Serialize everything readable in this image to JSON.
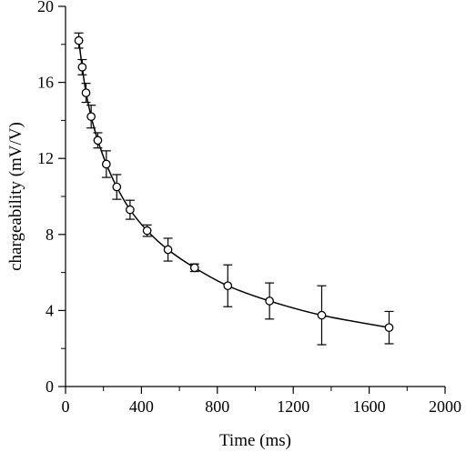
{
  "chart_data": {
    "type": "scatter",
    "title": "",
    "xlabel": "Time (ms)",
    "ylabel": "chargeability (mV/V)",
    "xlim": [
      0,
      2000
    ],
    "ylim": [
      0,
      20
    ],
    "x_ticks": [
      0,
      400,
      800,
      1200,
      1600,
      2000
    ],
    "y_ticks": [
      0,
      4,
      8,
      12,
      16,
      20
    ],
    "grid": false,
    "legend": "none",
    "marker": "open circle",
    "fit_line": "smooth curve through points",
    "color": "#000000",
    "series": [
      {
        "points": [
          {
            "x": 70,
            "y": 18.2,
            "err": 0.4
          },
          {
            "x": 88,
            "y": 16.8,
            "err": 0.4
          },
          {
            "x": 108,
            "y": 15.45,
            "err": 0.5
          },
          {
            "x": 135,
            "y": 14.2,
            "err": 0.6
          },
          {
            "x": 170,
            "y": 12.95,
            "err": 0.4
          },
          {
            "x": 215,
            "y": 11.7,
            "err": 0.7
          },
          {
            "x": 270,
            "y": 10.5,
            "err": 0.65
          },
          {
            "x": 340,
            "y": 9.3,
            "err": 0.5
          },
          {
            "x": 430,
            "y": 8.2,
            "err": 0.3
          },
          {
            "x": 540,
            "y": 7.2,
            "err": 0.6
          },
          {
            "x": 680,
            "y": 6.25,
            "err": 0.2
          },
          {
            "x": 855,
            "y": 5.3,
            "err": 1.1
          },
          {
            "x": 1075,
            "y": 4.5,
            "err": 0.95
          },
          {
            "x": 1350,
            "y": 3.75,
            "err": 1.55
          },
          {
            "x": 1705,
            "y": 3.1,
            "err": 0.85
          }
        ]
      }
    ]
  }
}
